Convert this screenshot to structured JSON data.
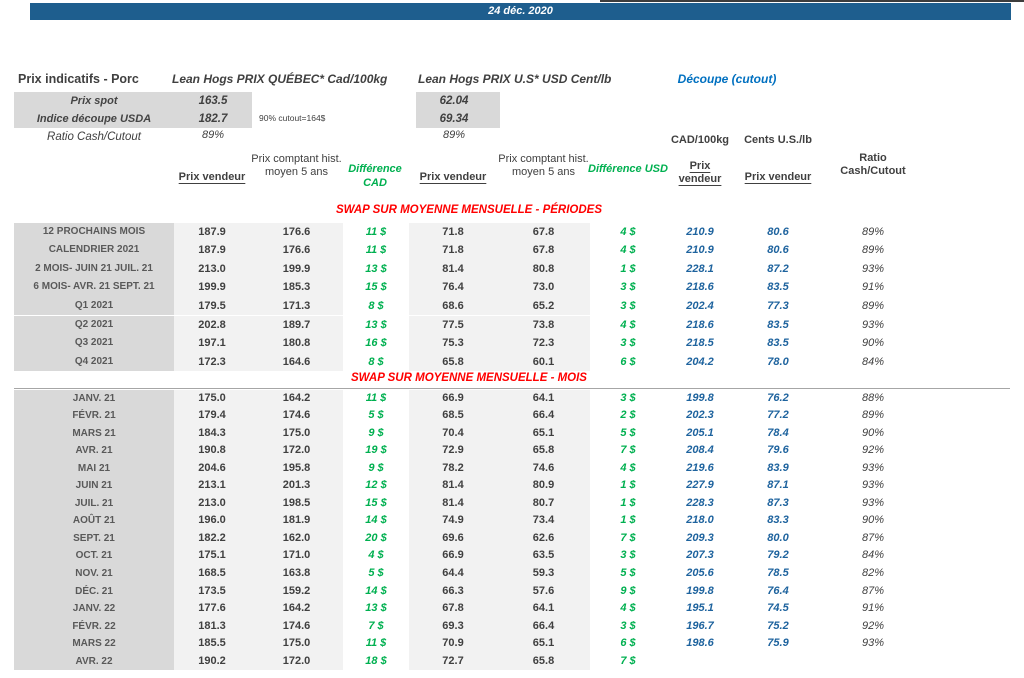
{
  "page": {
    "date": "24 déc. 2020"
  },
  "indicative": {
    "title": "Prix indicatifs - Porc",
    "qc_title": "Lean Hogs PRIX QUÉBEC* Cad/100kg",
    "us_title": "Lean Hogs PRIX U.S* USD Cent/lb",
    "cutout_title": "Découpe (cutout)",
    "spot_label": "Prix spot",
    "usda_label": "Indice découpe USDA",
    "ratio_label": "Ratio Cash/Cutout",
    "qc": {
      "spot": "163.5",
      "usda": "182.7",
      "ratio": "89%"
    },
    "us": {
      "spot": "62.04",
      "usda": "69.34",
      "ratio": "89%"
    },
    "note": "90% cutout=164$"
  },
  "columns": {
    "prix_vendeur": "Prix vendeur",
    "prix_comptant": "Prix comptant hist. moyen 5 ans",
    "diff_cad": "Différence CAD",
    "diff_usd": "Différence USD",
    "cad_unit": "CAD/100kg",
    "cents_unit": "Cents U.S./lb",
    "ratio": "Ratio Cash/Cutout"
  },
  "sections": [
    {
      "title": "SWAP SUR MOYENNE MENSUELLE - PÉRIODES",
      "rows": [
        {
          "label": "12 PROCHAINS MOIS",
          "qc_v": "187.9",
          "qc_h": "176.6",
          "d_cad": "11 $",
          "us_v": "71.8",
          "us_h": "67.8",
          "d_usd": "4 $",
          "cad": "210.9",
          "cents": "80.6",
          "ratio": "89%"
        },
        {
          "label": "CALENDRIER 2021",
          "qc_v": "187.9",
          "qc_h": "176.6",
          "d_cad": "11 $",
          "us_v": "71.8",
          "us_h": "67.8",
          "d_usd": "4 $",
          "cad": "210.9",
          "cents": "80.6",
          "ratio": "89%"
        },
        {
          "label": "2 MOIS- JUIN 21 JUIL. 21",
          "qc_v": "213.0",
          "qc_h": "199.9",
          "d_cad": "13 $",
          "us_v": "81.4",
          "us_h": "80.8",
          "d_usd": "1 $",
          "cad": "228.1",
          "cents": "87.2",
          "ratio": "93%"
        },
        {
          "label": "6 MOIS- AVR. 21 SEPT. 21",
          "qc_v": "199.9",
          "qc_h": "185.3",
          "d_cad": "15 $",
          "us_v": "76.4",
          "us_h": "73.0",
          "d_usd": "3 $",
          "cad": "218.6",
          "cents": "83.5",
          "ratio": "91%"
        },
        {
          "label": "Q1 2021",
          "qc_v": "179.5",
          "qc_h": "171.3",
          "d_cad": "8 $",
          "us_v": "68.6",
          "us_h": "65.2",
          "d_usd": "3 $",
          "cad": "202.4",
          "cents": "77.3",
          "ratio": "89%"
        },
        {
          "label": "Q2 2021",
          "qc_v": "202.8",
          "qc_h": "189.7",
          "d_cad": "13 $",
          "us_v": "77.5",
          "us_h": "73.8",
          "d_usd": "4 $",
          "cad": "218.6",
          "cents": "83.5",
          "ratio": "93%"
        },
        {
          "label": "Q3 2021",
          "qc_v": "197.1",
          "qc_h": "180.8",
          "d_cad": "16 $",
          "us_v": "75.3",
          "us_h": "72.3",
          "d_usd": "3 $",
          "cad": "218.5",
          "cents": "83.5",
          "ratio": "90%"
        },
        {
          "label": "Q4 2021",
          "qc_v": "172.3",
          "qc_h": "164.6",
          "d_cad": "8 $",
          "us_v": "65.8",
          "us_h": "60.1",
          "d_usd": "6 $",
          "cad": "204.2",
          "cents": "78.0",
          "ratio": "84%"
        }
      ]
    },
    {
      "title": "SWAP SUR MOYENNE MENSUELLE - MOIS",
      "rows": [
        {
          "label": "JANV. 21",
          "qc_v": "175.0",
          "qc_h": "164.2",
          "d_cad": "11 $",
          "us_v": "66.9",
          "us_h": "64.1",
          "d_usd": "3 $",
          "cad": "199.8",
          "cents": "76.2",
          "ratio": "88%"
        },
        {
          "label": "FÉVR. 21",
          "qc_v": "179.4",
          "qc_h": "174.6",
          "d_cad": "5 $",
          "us_v": "68.5",
          "us_h": "66.4",
          "d_usd": "2 $",
          "cad": "202.3",
          "cents": "77.2",
          "ratio": "89%"
        },
        {
          "label": "MARS 21",
          "qc_v": "184.3",
          "qc_h": "175.0",
          "d_cad": "9 $",
          "us_v": "70.4",
          "us_h": "65.1",
          "d_usd": "5 $",
          "cad": "205.1",
          "cents": "78.4",
          "ratio": "90%"
        },
        {
          "label": "AVR. 21",
          "qc_v": "190.8",
          "qc_h": "172.0",
          "d_cad": "19 $",
          "us_v": "72.9",
          "us_h": "65.8",
          "d_usd": "7 $",
          "cad": "208.4",
          "cents": "79.6",
          "ratio": "92%"
        },
        {
          "label": "MAI 21",
          "qc_v": "204.6",
          "qc_h": "195.8",
          "d_cad": "9 $",
          "us_v": "78.2",
          "us_h": "74.6",
          "d_usd": "4 $",
          "cad": "219.6",
          "cents": "83.9",
          "ratio": "93%"
        },
        {
          "label": "JUIN 21",
          "qc_v": "213.1",
          "qc_h": "201.3",
          "d_cad": "12 $",
          "us_v": "81.4",
          "us_h": "80.9",
          "d_usd": "1 $",
          "cad": "227.9",
          "cents": "87.1",
          "ratio": "93%"
        },
        {
          "label": "JUIL. 21",
          "qc_v": "213.0",
          "qc_h": "198.5",
          "d_cad": "15 $",
          "us_v": "81.4",
          "us_h": "80.7",
          "d_usd": "1 $",
          "cad": "228.3",
          "cents": "87.3",
          "ratio": "93%"
        },
        {
          "label": "AOÛT 21",
          "qc_v": "196.0",
          "qc_h": "181.9",
          "d_cad": "14 $",
          "us_v": "74.9",
          "us_h": "73.4",
          "d_usd": "1 $",
          "cad": "218.0",
          "cents": "83.3",
          "ratio": "90%"
        },
        {
          "label": "SEPT. 21",
          "qc_v": "182.2",
          "qc_h": "162.0",
          "d_cad": "20 $",
          "us_v": "69.6",
          "us_h": "62.6",
          "d_usd": "7 $",
          "cad": "209.3",
          "cents": "80.0",
          "ratio": "87%"
        },
        {
          "label": "OCT. 21",
          "qc_v": "175.1",
          "qc_h": "171.0",
          "d_cad": "4 $",
          "us_v": "66.9",
          "us_h": "63.5",
          "d_usd": "3 $",
          "cad": "207.3",
          "cents": "79.2",
          "ratio": "84%"
        },
        {
          "label": "NOV. 21",
          "qc_v": "168.5",
          "qc_h": "163.8",
          "d_cad": "5 $",
          "us_v": "64.4",
          "us_h": "59.3",
          "d_usd": "5 $",
          "cad": "205.6",
          "cents": "78.5",
          "ratio": "82%"
        },
        {
          "label": "DÉC. 21",
          "qc_v": "173.5",
          "qc_h": "159.2",
          "d_cad": "14 $",
          "us_v": "66.3",
          "us_h": "57.6",
          "d_usd": "9 $",
          "cad": "199.8",
          "cents": "76.4",
          "ratio": "87%"
        },
        {
          "label": "JANV. 22",
          "qc_v": "177.6",
          "qc_h": "164.2",
          "d_cad": "13 $",
          "us_v": "67.8",
          "us_h": "64.1",
          "d_usd": "4 $",
          "cad": "195.1",
          "cents": "74.5",
          "ratio": "91%"
        },
        {
          "label": "FÉVR. 22",
          "qc_v": "181.3",
          "qc_h": "174.6",
          "d_cad": "7 $",
          "us_v": "69.3",
          "us_h": "66.4",
          "d_usd": "3 $",
          "cad": "196.7",
          "cents": "75.2",
          "ratio": "92%"
        },
        {
          "label": "MARS 22",
          "qc_v": "185.5",
          "qc_h": "175.0",
          "d_cad": "11 $",
          "us_v": "70.9",
          "us_h": "65.1",
          "d_usd": "6 $",
          "cad": "198.6",
          "cents": "75.9",
          "ratio": "93%"
        },
        {
          "label": "AVR. 22",
          "qc_v": "190.2",
          "qc_h": "172.0",
          "d_cad": "18 $",
          "us_v": "72.7",
          "us_h": "65.8",
          "d_usd": "7 $",
          "cad": "",
          "cents": "",
          "ratio": ""
        }
      ]
    }
  ]
}
